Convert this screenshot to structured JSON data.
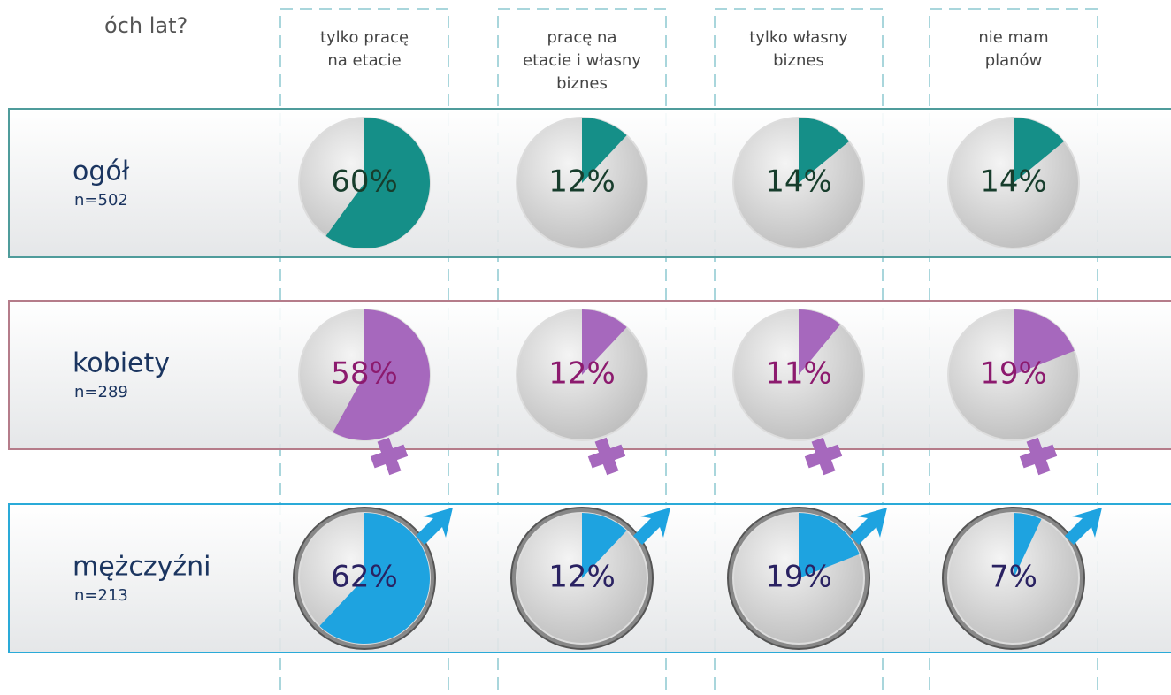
{
  "chart_data": {
    "type": "pie",
    "title": "óch lat?",
    "categories": [
      "tylko pracę\nna etacie",
      "pracę na\netacie i własny\nbiznes",
      "tylko własny\nbiznes",
      "nie mam\nplanów"
    ],
    "series": [
      {
        "name": "ogół",
        "sample": "n=502",
        "color": "#158f88",
        "border": "#4f9c9b",
        "text_color": "#173d2c",
        "values": [
          60,
          12,
          14,
          14
        ],
        "value_labels": [
          "60%",
          "12%",
          "14%",
          "14%"
        ]
      },
      {
        "name": "kobiety",
        "sample": "n=289",
        "color": "#a668bd",
        "border": "#b57c8a",
        "text_color": "#8c1a6e",
        "values": [
          58,
          12,
          11,
          19
        ],
        "value_labels": [
          "58%",
          "12%",
          "11%",
          "19%"
        ]
      },
      {
        "name": "mężczyźni",
        "sample": "n=213",
        "color": "#1ea3e0",
        "border": "#2aaad8",
        "text_color": "#2a2262",
        "values": [
          62,
          12,
          19,
          7
        ],
        "value_labels": [
          "62%",
          "12%",
          "19%",
          "7%"
        ]
      }
    ]
  }
}
